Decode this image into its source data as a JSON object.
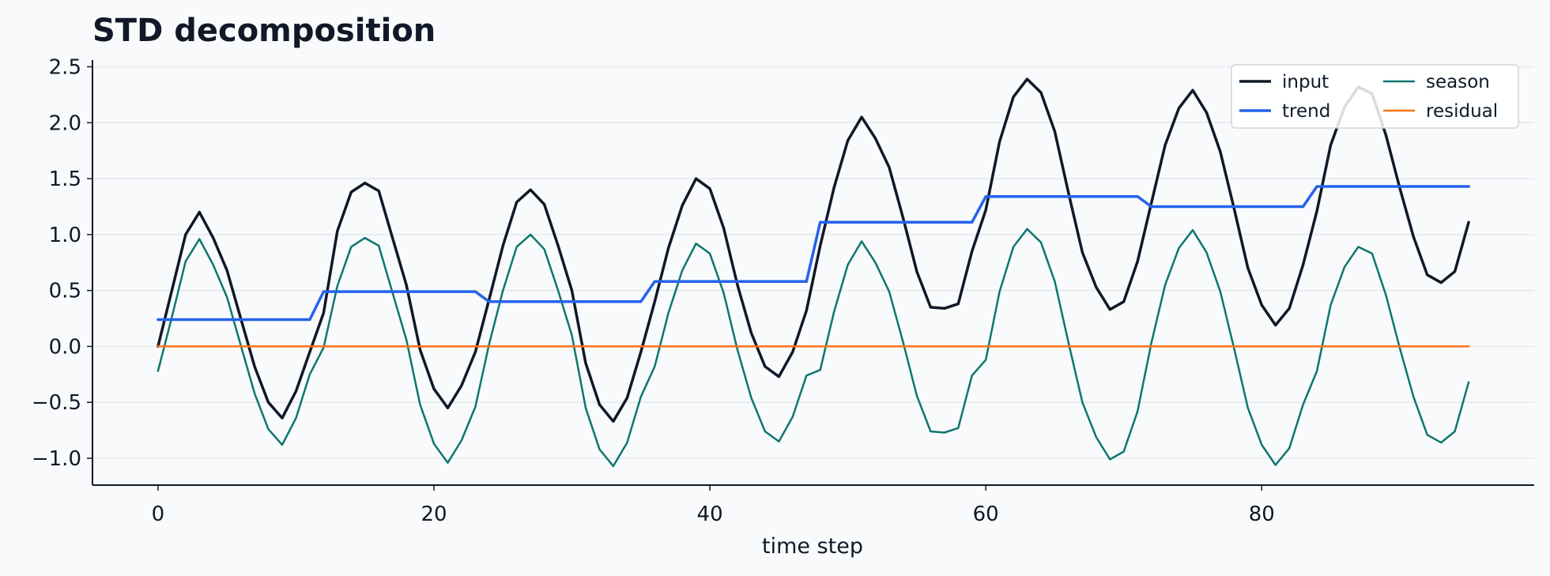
{
  "chart_data": {
    "type": "line",
    "title": "STD decomposition",
    "xlabel": "time step",
    "ylabel": "",
    "xlim": [
      -4.75,
      99.75
    ],
    "ylim": [
      -1.24,
      2.56
    ],
    "x_ticks": [
      0,
      20,
      40,
      60,
      80
    ],
    "y_ticks": [
      -1.0,
      -0.5,
      0.0,
      0.5,
      1.0,
      1.5,
      2.0,
      2.5
    ],
    "y_tick_labels": [
      "−1.0",
      "−0.5",
      "0.0",
      "0.5",
      "1.0",
      "1.5",
      "2.0",
      "2.5"
    ],
    "grid": "horizontal",
    "legend_position": "top-right",
    "x": [
      0,
      1,
      2,
      3,
      4,
      5,
      6,
      7,
      8,
      9,
      10,
      11,
      12,
      13,
      14,
      15,
      16,
      17,
      18,
      19,
      20,
      21,
      22,
      23,
      24,
      25,
      26,
      27,
      28,
      29,
      30,
      31,
      32,
      33,
      34,
      35,
      36,
      37,
      38,
      39,
      40,
      41,
      42,
      43,
      44,
      45,
      46,
      47,
      48,
      49,
      50,
      51,
      52,
      53,
      54,
      55,
      56,
      57,
      58,
      59,
      60,
      61,
      62,
      63,
      64,
      65,
      66,
      67,
      68,
      69,
      70,
      71,
      72,
      73,
      74,
      75,
      76,
      77,
      78,
      79,
      80,
      81,
      82,
      83,
      84,
      85,
      86,
      87,
      88,
      89,
      90,
      91,
      92,
      93,
      94,
      95
    ],
    "series": [
      {
        "name": "input",
        "color": "#111827",
        "width": 3.5,
        "values": [
          0.0,
          0.5,
          1.0,
          1.2,
          0.97,
          0.68,
          0.25,
          -0.18,
          -0.5,
          -0.64,
          -0.4,
          -0.05,
          0.3,
          1.03,
          1.38,
          1.46,
          1.39,
          0.97,
          0.55,
          -0.03,
          -0.38,
          -0.55,
          -0.35,
          -0.05,
          0.42,
          0.9,
          1.29,
          1.4,
          1.27,
          0.9,
          0.5,
          -0.15,
          -0.52,
          -0.67,
          -0.46,
          -0.05,
          0.4,
          0.88,
          1.26,
          1.5,
          1.41,
          1.06,
          0.55,
          0.12,
          -0.18,
          -0.27,
          -0.05,
          0.32,
          0.9,
          1.42,
          1.84,
          2.05,
          1.86,
          1.6,
          1.15,
          0.67,
          0.35,
          0.34,
          0.38,
          0.85,
          1.22,
          1.83,
          2.23,
          2.39,
          2.27,
          1.92,
          1.37,
          0.84,
          0.53,
          0.33,
          0.4,
          0.76,
          1.28,
          1.8,
          2.13,
          2.29,
          2.09,
          1.74,
          1.23,
          0.7,
          0.37,
          0.19,
          0.34,
          0.73,
          1.21,
          1.8,
          2.14,
          2.32,
          2.26,
          1.89,
          1.42,
          0.98,
          0.64,
          0.57,
          0.67,
          1.11
        ]
      },
      {
        "name": "trend",
        "color": "#2563eb",
        "width": 3.5,
        "values": [
          0.24,
          0.24,
          0.24,
          0.24,
          0.24,
          0.24,
          0.24,
          0.24,
          0.24,
          0.24,
          0.24,
          0.24,
          0.49,
          0.49,
          0.49,
          0.49,
          0.49,
          0.49,
          0.49,
          0.49,
          0.49,
          0.49,
          0.49,
          0.49,
          0.4,
          0.4,
          0.4,
          0.4,
          0.4,
          0.4,
          0.4,
          0.4,
          0.4,
          0.4,
          0.4,
          0.4,
          0.58,
          0.58,
          0.58,
          0.58,
          0.58,
          0.58,
          0.58,
          0.58,
          0.58,
          0.58,
          0.58,
          0.58,
          1.11,
          1.11,
          1.11,
          1.11,
          1.11,
          1.11,
          1.11,
          1.11,
          1.11,
          1.11,
          1.11,
          1.11,
          1.34,
          1.34,
          1.34,
          1.34,
          1.34,
          1.34,
          1.34,
          1.34,
          1.34,
          1.34,
          1.34,
          1.34,
          1.25,
          1.25,
          1.25,
          1.25,
          1.25,
          1.25,
          1.25,
          1.25,
          1.25,
          1.25,
          1.25,
          1.25,
          1.43,
          1.43,
          1.43,
          1.43,
          1.43,
          1.43,
          1.43,
          1.43,
          1.43,
          1.43,
          1.43,
          1.43
        ]
      },
      {
        "name": "season",
        "color": "#0f766e",
        "width": 2.5,
        "values": [
          -0.22,
          0.26,
          0.76,
          0.96,
          0.73,
          0.44,
          0.01,
          -0.42,
          -0.74,
          -0.88,
          -0.64,
          -0.25,
          -0.01,
          0.54,
          0.89,
          0.97,
          0.9,
          0.48,
          0.06,
          -0.52,
          -0.87,
          -1.04,
          -0.84,
          -0.54,
          0.02,
          0.5,
          0.89,
          1.0,
          0.87,
          0.5,
          0.1,
          -0.55,
          -0.92,
          -1.07,
          -0.86,
          -0.45,
          -0.18,
          0.3,
          0.68,
          0.92,
          0.83,
          0.48,
          -0.03,
          -0.46,
          -0.76,
          -0.85,
          -0.63,
          -0.26,
          -0.21,
          0.31,
          0.73,
          0.94,
          0.75,
          0.49,
          0.04,
          -0.44,
          -0.76,
          -0.77,
          -0.73,
          -0.26,
          -0.12,
          0.49,
          0.89,
          1.05,
          0.93,
          0.58,
          0.03,
          -0.5,
          -0.81,
          -1.01,
          -0.94,
          -0.58,
          0.03,
          0.55,
          0.88,
          1.04,
          0.84,
          0.49,
          -0.02,
          -0.55,
          -0.88,
          -1.06,
          -0.91,
          -0.52,
          -0.22,
          0.37,
          0.71,
          0.89,
          0.83,
          0.46,
          -0.01,
          -0.45,
          -0.79,
          -0.86,
          -0.76,
          -0.32
        ]
      },
      {
        "name": "residual",
        "color": "#f97316",
        "width": 2.5,
        "values": [
          0,
          0,
          0,
          0,
          0,
          0,
          0,
          0,
          0,
          0,
          0,
          0,
          0,
          0,
          0,
          0,
          0,
          0,
          0,
          0,
          0,
          0,
          0,
          0,
          0,
          0,
          0,
          0,
          0,
          0,
          0,
          0,
          0,
          0,
          0,
          0,
          0,
          0,
          0,
          0,
          0,
          0,
          0,
          0,
          0,
          0,
          0,
          0,
          0,
          0,
          0,
          0,
          0,
          0,
          0,
          0,
          0,
          0,
          0,
          0,
          0,
          0,
          0,
          0,
          0,
          0,
          0,
          0,
          0,
          0,
          0,
          0,
          0,
          0,
          0,
          0,
          0,
          0,
          0,
          0,
          0,
          0,
          0,
          0,
          0,
          0,
          0,
          0,
          0,
          0,
          0,
          0,
          0,
          0,
          0,
          0
        ]
      }
    ],
    "legend_order": [
      "input",
      "season",
      "trend",
      "residual"
    ]
  }
}
